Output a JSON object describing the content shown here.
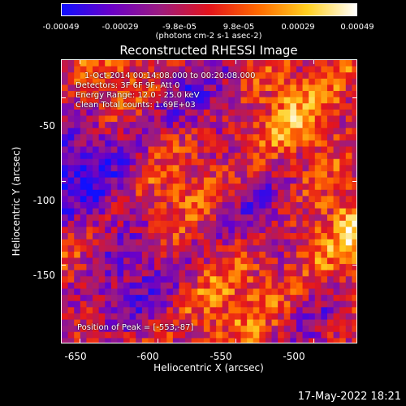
{
  "colorbar": {
    "ticks": [
      "-0.00049",
      "-0.00029",
      "-9.8e-05",
      "9.8e-05",
      "0.00029",
      "0.00049"
    ],
    "unit": "(photons cm-2 s-1 asec-2)",
    "vmin": -0.00049,
    "vmax": 0.00049,
    "colors": [
      "#1010ff",
      "#6a00c8",
      "#9c1c80",
      "#e4141c",
      "#ff6a00",
      "#ffd020",
      "#ffffff"
    ]
  },
  "title": "Reconstructed RHESSI Image",
  "annotations": {
    "time": "1-Oct-2014 00:14:08.000 to 00:20:08.000",
    "detectors": "Detectors: 3F 6F 9F, Att 0",
    "energy": "Energy Range: 12.0 - 25.0 keV",
    "clean": "Clean     Total counts: 1.69E+03",
    "peak": "Position of Peak = [-553,-87]"
  },
  "chart_data": {
    "type": "heatmap",
    "title": "Reconstructed RHESSI Image",
    "xlabel": "Heliocentric X (arcsec)",
    "ylabel": "Heliocentric Y (arcsec)",
    "xlim": [
      -662,
      -472
    ],
    "ylim": [
      -197,
      -27
    ],
    "xticks": [
      -650,
      -600,
      -550,
      -500
    ],
    "yticks": [
      -50,
      -100,
      -150
    ],
    "xtick_labels": [
      "-650",
      "-600",
      "-550",
      "-500"
    ],
    "ytick_labels": [
      "-50",
      "-100",
      "-150"
    ],
    "colorscale_range": [
      -0.00049,
      0.00049
    ],
    "peak_position": [
      -553,
      -87
    ]
  },
  "footer": {
    "date": "17-May-2022 18:21"
  }
}
